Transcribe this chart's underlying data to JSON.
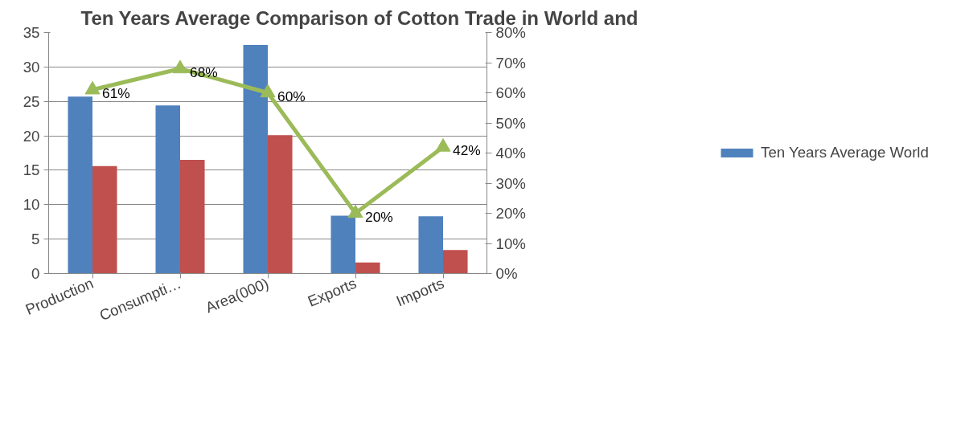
{
  "chart_data": {
    "type": "bar",
    "title": "Ten Years Average Comparison of Cotton Trade in World and",
    "categories": [
      "Production",
      "Consumpti…",
      "Area(000)",
      "Exports",
      "Imports"
    ],
    "series": [
      {
        "name": "Ten Years Average World",
        "color": "#4f81bd",
        "values": [
          25.7,
          24.4,
          33.2,
          8.4,
          8.3
        ]
      },
      {
        "color": "#c0504d",
        "values": [
          15.6,
          16.5,
          20.1,
          1.6,
          3.4
        ]
      },
      {
        "type": "line",
        "axis": "y2",
        "color": "#9bbb59",
        "marker": "triangle",
        "values": [
          61,
          68,
          60,
          20,
          42
        ],
        "value_labels": [
          "61%",
          "68%",
          "60%",
          "20%",
          "42%"
        ]
      }
    ],
    "ylim": [
      0,
      35
    ],
    "yticks": [
      0,
      5,
      10,
      15,
      20,
      25,
      30,
      35
    ],
    "y2lim": [
      0,
      80
    ],
    "y2ticks": [
      {
        "value": 0,
        "label": "0%"
      },
      {
        "value": 10,
        "label": "10%"
      },
      {
        "value": 20,
        "label": "20%"
      },
      {
        "value": 30,
        "label": "30%"
      },
      {
        "value": 40,
        "label": "40%"
      },
      {
        "value": 50,
        "label": "50%"
      },
      {
        "value": 60,
        "label": "60%"
      },
      {
        "value": 70,
        "label": "70%"
      },
      {
        "value": 80,
        "label": "80%"
      }
    ],
    "grid": "y",
    "legend": "right"
  }
}
